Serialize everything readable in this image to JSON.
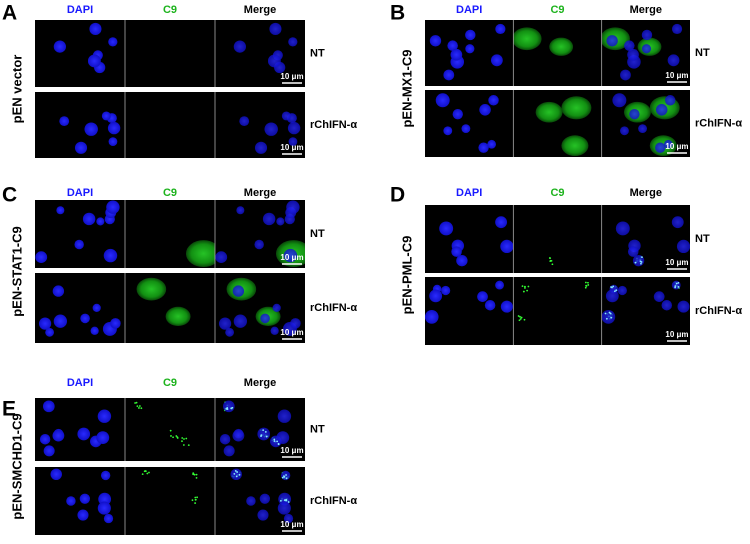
{
  "panels": [
    {
      "letter": "A",
      "construct": "pEN vector",
      "columns": [
        "DAPI",
        "C9",
        "Merge"
      ],
      "rows": [
        {
          "label": "NT",
          "scale_bar": "10 μm"
        },
        {
          "label": "rChIFN-α",
          "scale_bar": "10 μm"
        }
      ]
    },
    {
      "letter": "B",
      "construct": "pEN-MX1-C9",
      "columns": [
        "DAPI",
        "C9",
        "Merge"
      ],
      "rows": [
        {
          "label": "NT",
          "scale_bar": "10 μm"
        },
        {
          "label": "rChIFN-α",
          "scale_bar": "10 μm"
        }
      ]
    },
    {
      "letter": "C",
      "construct": "pEN-STAT1-C9",
      "columns": [
        "DAPI",
        "C9",
        "Merge"
      ],
      "rows": [
        {
          "label": "NT",
          "scale_bar": "10 μm"
        },
        {
          "label": "rChIFN-α",
          "scale_bar": "10 μm"
        }
      ]
    },
    {
      "letter": "D",
      "construct": "pEN-PML-C9",
      "columns": [
        "DAPI",
        "C9",
        "Merge"
      ],
      "rows": [
        {
          "label": "NT",
          "scale_bar": "10 μm"
        },
        {
          "label": "rChIFN-α",
          "scale_bar": "10 μm"
        }
      ]
    },
    {
      "letter": "E",
      "construct": "pEN-SMCHD1-C9",
      "columns": [
        "DAPI",
        "C9",
        "Merge"
      ],
      "rows": [
        {
          "label": "NT",
          "scale_bar": "10 μm"
        },
        {
          "label": "rChIFN-α",
          "scale_bar": "10 μm"
        }
      ]
    }
  ]
}
